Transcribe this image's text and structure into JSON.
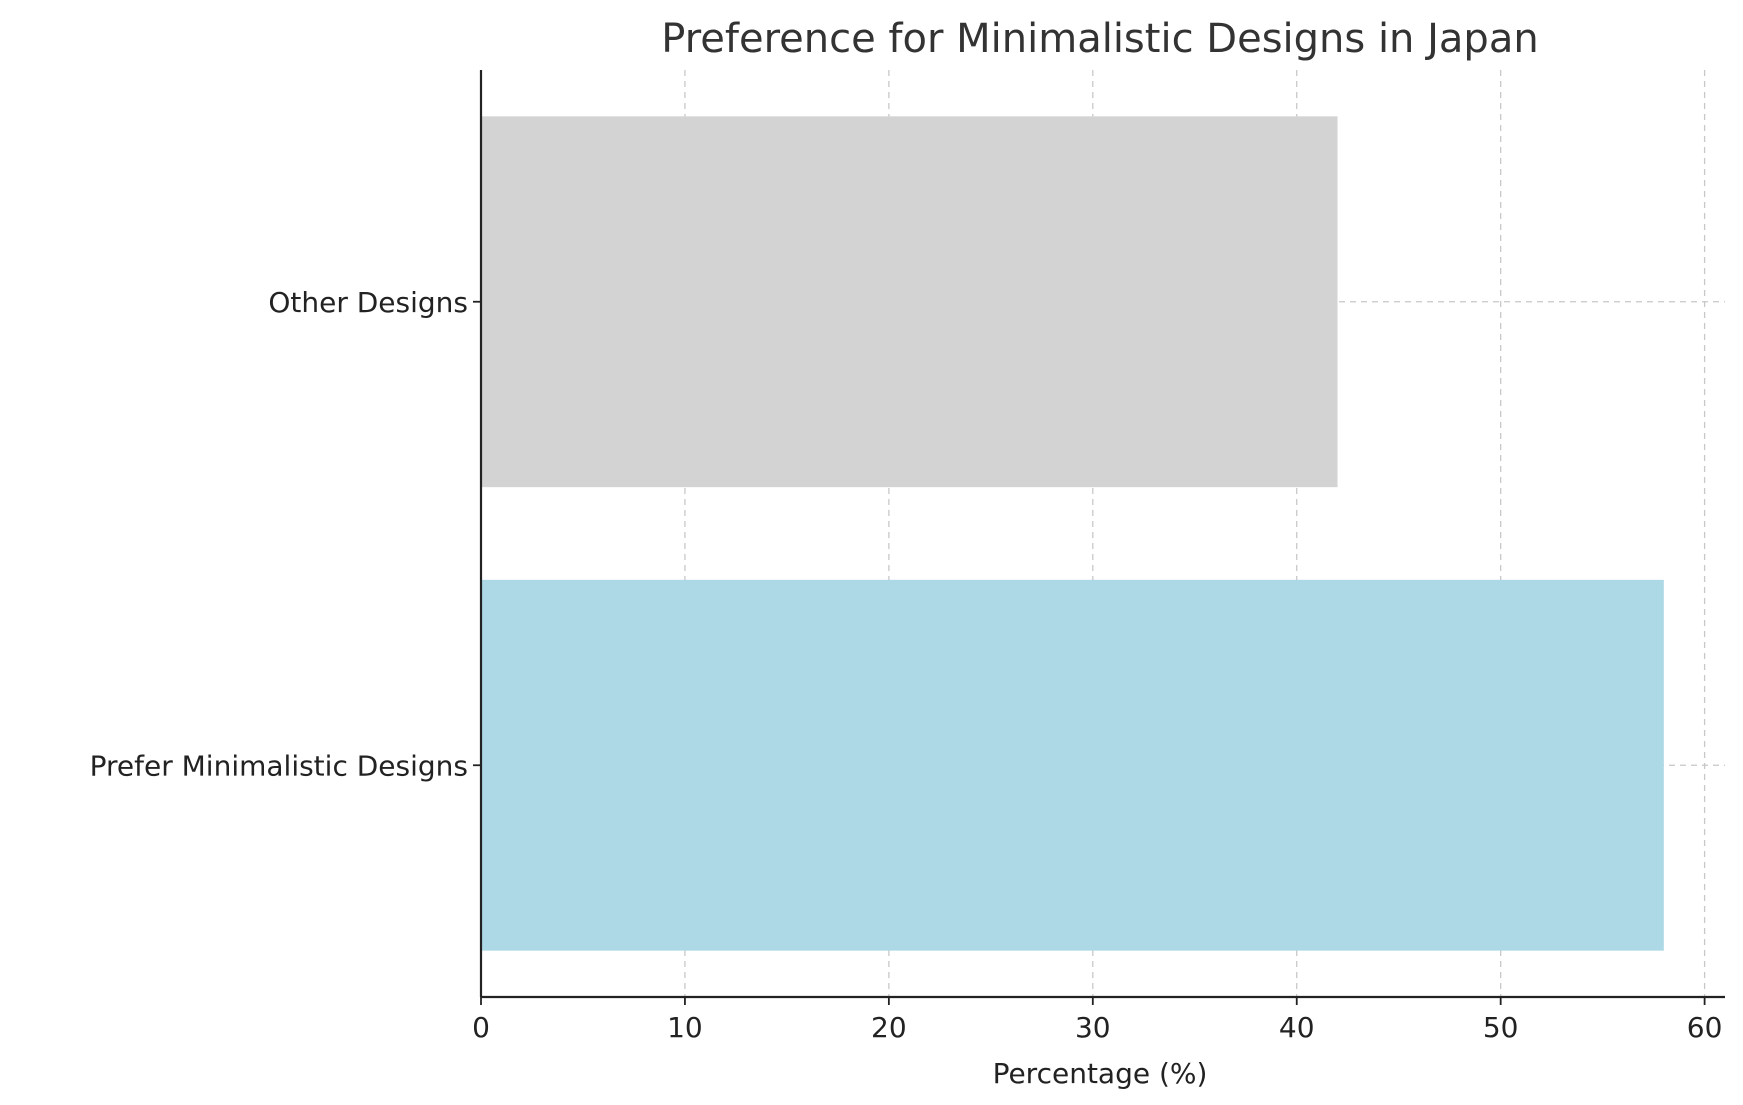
{
  "chart_data": {
    "type": "bar",
    "orientation": "horizontal",
    "title": "Preference for Minimalistic Designs in Japan",
    "xlabel": "Percentage (%)",
    "ylabel": "",
    "categories": [
      "Prefer Minimalistic Designs",
      "Other Designs"
    ],
    "values": [
      58,
      42
    ],
    "colors": [
      "#add8e6",
      "#d3d3d3"
    ],
    "xlim": [
      0,
      61
    ],
    "xticks": [
      0,
      10,
      20,
      30,
      40,
      50,
      60
    ],
    "grid": true
  }
}
